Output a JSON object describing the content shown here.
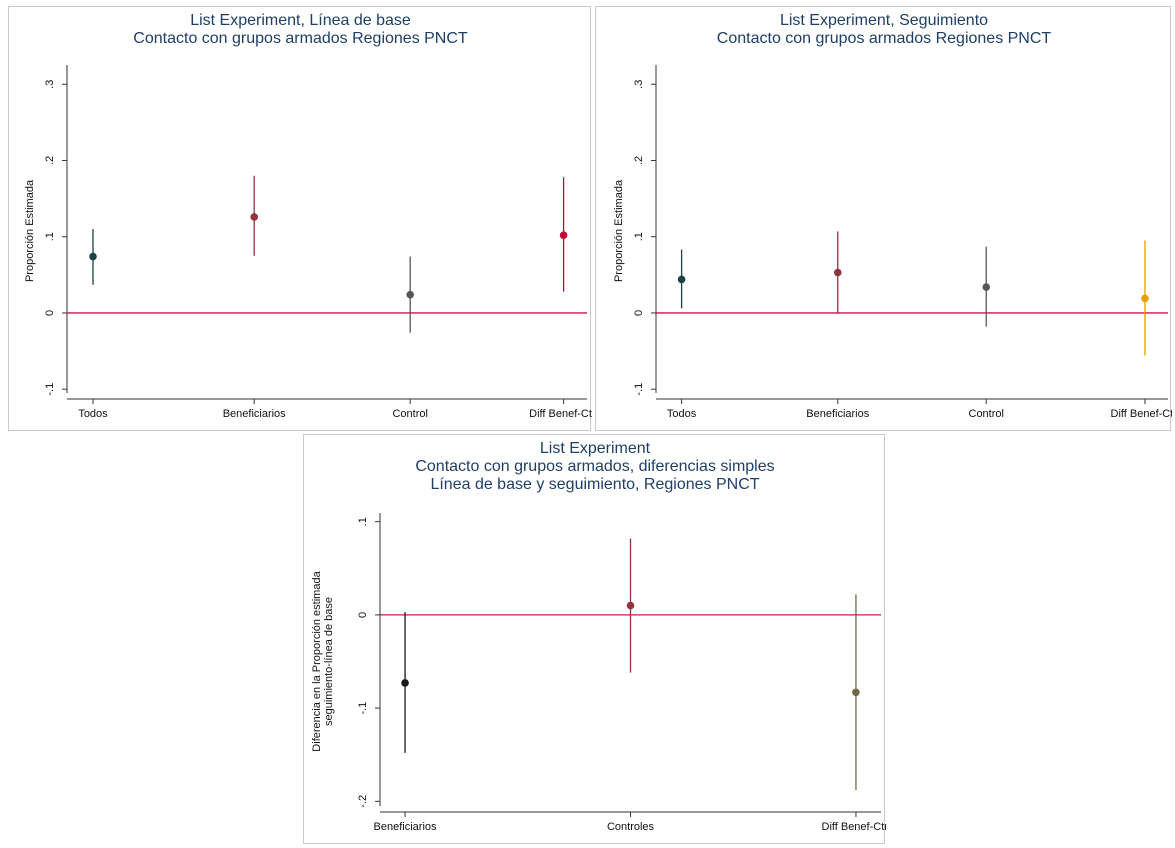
{
  "chart_data": [
    {
      "type": "scatter",
      "subtype": "point-estimate-with-ci",
      "title_lines": [
        "List Experiment, Línea de base",
        "Contacto con grupos armados Regiones PNCT"
      ],
      "xlabel": "",
      "ylabel_lines": [
        "Proporción Estimada"
      ],
      "categories": [
        "Todos",
        "Beneficiarios",
        "Control",
        "Diff Benef-Ctrl"
      ],
      "y_ticks": [
        -0.1,
        0,
        0.1,
        0.2,
        0.3
      ],
      "y_tick_labels": [
        "-.1",
        "0",
        ".1",
        ".2",
        ".3"
      ],
      "ylim": [
        -0.105,
        0.32
      ],
      "reference_line": 0,
      "reference_color": "#c8174b",
      "grid": false,
      "points": [
        {
          "category": "Todos",
          "estimate": 0.074,
          "ci_low": 0.037,
          "ci_high": 0.11,
          "color": "#1a4144"
        },
        {
          "category": "Beneficiarios",
          "estimate": 0.126,
          "ci_low": 0.075,
          "ci_high": 0.18,
          "color": "#90353b"
        },
        {
          "category": "Control",
          "estimate": 0.024,
          "ci_low": -0.026,
          "ci_high": 0.074,
          "color": "#55585a"
        },
        {
          "category": "Diff Benef-Ctrl",
          "estimate": 0.102,
          "ci_low": 0.028,
          "ci_high": 0.178,
          "color": "#c10534"
        }
      ]
    },
    {
      "type": "scatter",
      "subtype": "point-estimate-with-ci",
      "title_lines": [
        "List Experiment, Seguimiento",
        "Contacto con grupos armados Regiones PNCT"
      ],
      "xlabel": "",
      "ylabel_lines": [
        "Proporción Estimada"
      ],
      "categories": [
        "Todos",
        "Beneficiarios",
        "Control",
        "Diff Benef-Ctrl"
      ],
      "y_ticks": [
        -0.1,
        0,
        0.1,
        0.2,
        0.3
      ],
      "y_tick_labels": [
        "-.1",
        "0",
        ".1",
        ".2",
        ".3"
      ],
      "ylim": [
        -0.105,
        0.32
      ],
      "reference_line": 0,
      "reference_color": "#c8174b",
      "grid": false,
      "points": [
        {
          "category": "Todos",
          "estimate": 0.044,
          "ci_low": 0.006,
          "ci_high": 0.083,
          "color": "#1a4144"
        },
        {
          "category": "Beneficiarios",
          "estimate": 0.053,
          "ci_low": 0.0,
          "ci_high": 0.107,
          "color": "#90353b"
        },
        {
          "category": "Control",
          "estimate": 0.034,
          "ci_low": -0.018,
          "ci_high": 0.087,
          "color": "#55585a"
        },
        {
          "category": "Diff Benef-Ctrl",
          "estimate": 0.019,
          "ci_low": -0.056,
          "ci_high": 0.095,
          "color": "#e69f00"
        }
      ]
    },
    {
      "type": "scatter",
      "subtype": "point-estimate-with-ci",
      "title_lines": [
        "List Experiment",
        "Contacto con grupos armados, diferencias simples",
        "Línea de base y seguimiento, Regiones PNCT"
      ],
      "xlabel": "",
      "ylabel_lines": [
        "Diferencia en la Proporción estimada",
        "seguimiento-línea de base"
      ],
      "categories": [
        "Beneficiarios",
        "Controles",
        "Diff Benef-Ctrl"
      ],
      "y_ticks": [
        -0.2,
        -0.1,
        0,
        0.1
      ],
      "y_tick_labels": [
        "-.2",
        "-.1",
        "0",
        ".1"
      ],
      "ylim": [
        -0.205,
        0.105
      ],
      "reference_line": 0,
      "reference_color": "#c8174b",
      "grid": false,
      "points": [
        {
          "category": "Beneficiarios",
          "estimate": -0.073,
          "ci_low": -0.148,
          "ci_high": 0.003,
          "color": "#1a1a1a"
        },
        {
          "category": "Controles",
          "estimate": 0.01,
          "ci_low": -0.062,
          "ci_high": 0.082,
          "color": "#90353b"
        },
        {
          "category": "Diff Benef-Ctrl",
          "estimate": -0.083,
          "ci_low": -0.188,
          "ci_high": 0.022,
          "color": "#6b6b4a"
        }
      ]
    }
  ]
}
